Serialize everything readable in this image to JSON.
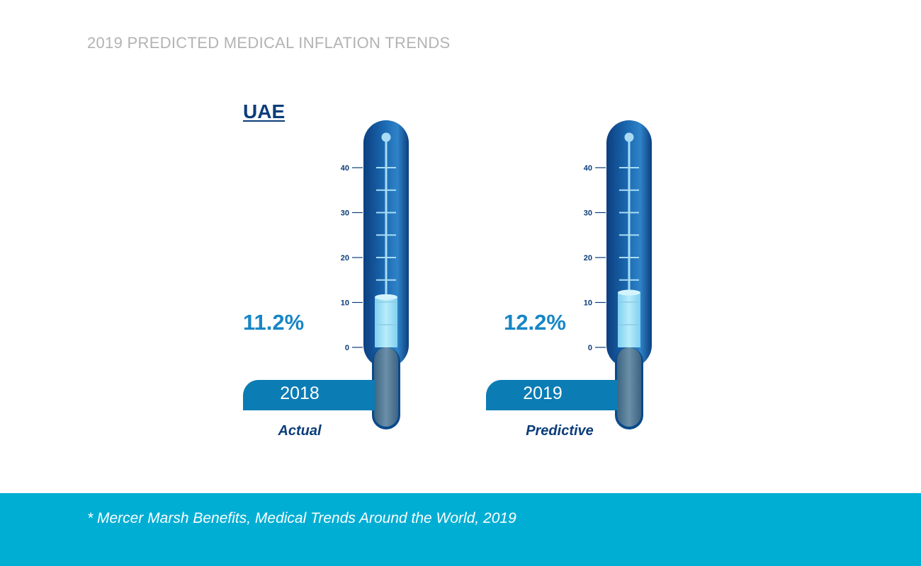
{
  "page": {
    "title": "2019 PREDICTED MEDICAL INFLATION TRENDS",
    "country": "UAE",
    "footnote": "* Mercer Marsh Benefits, Medical Trends Around the World, 2019"
  },
  "colors": {
    "accent": "#1786c6",
    "navy": "#0b3d7a",
    "tab": "#0b7cb4",
    "footer": "#00aed4",
    "title_gray": "#b3b3b3"
  },
  "chart_data": {
    "type": "bar",
    "style": "thermometer",
    "categories": [
      "2018",
      "2019"
    ],
    "values": [
      11.2,
      12.2
    ],
    "value_labels": [
      "11.2%",
      "12.2%"
    ],
    "period_labels": [
      "Actual",
      "Predictive"
    ],
    "tick_labels": [
      "0",
      "10",
      "20",
      "30",
      "40"
    ],
    "ylim": [
      0,
      40
    ],
    "grid": false
  }
}
